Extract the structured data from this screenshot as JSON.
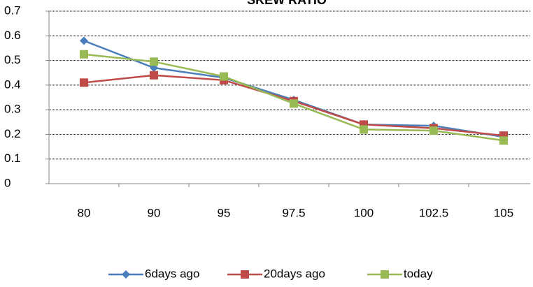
{
  "chart_data": {
    "type": "line",
    "title": "SKEW RATIO",
    "categories": [
      "80",
      "90",
      "95",
      "97.5",
      "100",
      "102.5",
      "105"
    ],
    "series": [
      {
        "name": "6days ago",
        "color": "#4a7ebb",
        "marker": "diamond",
        "values": [
          0.58,
          0.47,
          0.43,
          0.34,
          0.24,
          0.235,
          0.19
        ]
      },
      {
        "name": "20days ago",
        "color": "#be4b48",
        "marker": "square",
        "values": [
          0.41,
          0.44,
          0.42,
          0.335,
          0.24,
          0.225,
          0.195
        ]
      },
      {
        "name": "today",
        "color": "#98b954",
        "marker": "square",
        "values": [
          0.525,
          0.495,
          0.435,
          0.325,
          0.22,
          0.215,
          0.175
        ]
      }
    ],
    "ylim": [
      0,
      0.7
    ],
    "yticks": [
      0,
      0.1,
      0.2,
      0.3,
      0.4,
      0.5,
      0.6,
      0.7
    ],
    "grid": true,
    "legend": "bottom"
  }
}
